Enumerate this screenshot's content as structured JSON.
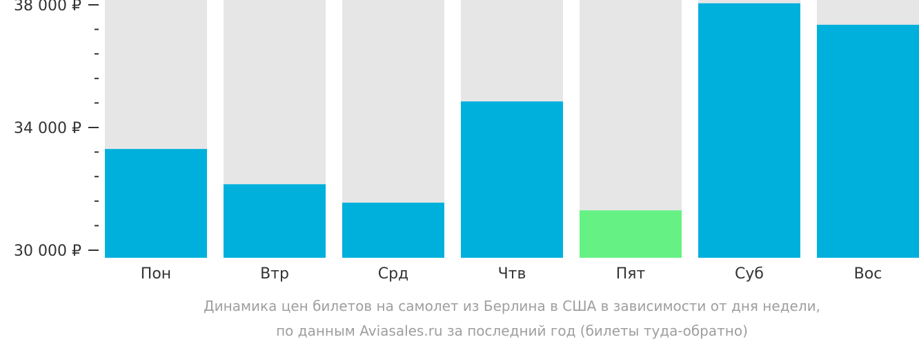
{
  "colors": {
    "background_bar": "#e6e6e6",
    "bar": "#00b0dc",
    "bar_highlight": "#66f184",
    "text": "#333333",
    "caption": "#9e9e9e"
  },
  "chart_data": {
    "type": "bar",
    "categories": [
      "Пон",
      "Втр",
      "Срд",
      "Чтв",
      "Пят",
      "Суб",
      "Вос"
    ],
    "values": [
      33300,
      32150,
      31550,
      34850,
      31300,
      38050,
      37350
    ],
    "highlight_index": 4,
    "ylim": [
      30000,
      38000
    ],
    "y_ticks_major": [
      {
        "value": 38000,
        "label": "38 000 ₽"
      },
      {
        "value": 34000,
        "label": "34 000 ₽"
      },
      {
        "value": 30000,
        "label": "30 000 ₽"
      }
    ],
    "y_ticks_minor": [
      30800,
      31600,
      32400,
      33200,
      34800,
      35600,
      36400,
      37200
    ],
    "caption_line1": "Динамика цен билетов на самолет из Берлина в США в зависимости от дня недели,",
    "caption_line2": "по данным Aviasales.ru за последний год (билеты туда-обратно)"
  }
}
